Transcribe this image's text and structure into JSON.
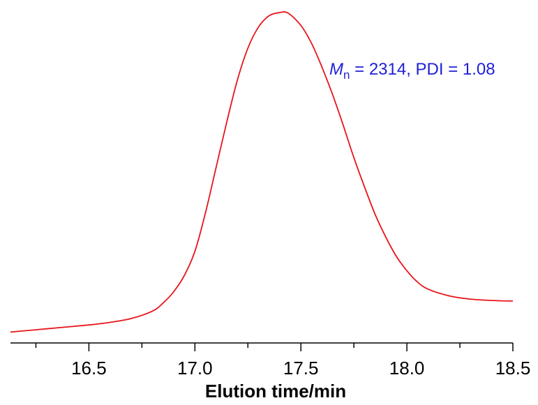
{
  "chart_data": {
    "type": "line",
    "xlabel": "Elution time/min",
    "ylabel": "",
    "xlim": [
      16.13,
      18.5
    ],
    "ylim": [
      0,
      1
    ],
    "x_ticks": [
      "16.5",
      "17.0",
      "17.5",
      "18.0",
      "18.5"
    ],
    "y_axis_visible": false,
    "grid": false,
    "annotation": {
      "symbol": "M",
      "subscript": "n",
      "text": " = 2314, PDI = 1.08",
      "color": "#1f1fd6"
    },
    "series": [
      {
        "color": "#e8141a",
        "x": [
          16.13,
          16.3,
          16.5,
          16.6,
          16.7,
          16.8,
          16.85,
          16.9,
          16.95,
          17.0,
          17.05,
          17.1,
          17.15,
          17.2,
          17.25,
          17.3,
          17.35,
          17.4,
          17.44,
          17.5,
          17.55,
          17.6,
          17.65,
          17.7,
          17.75,
          17.8,
          17.85,
          17.9,
          17.95,
          18.0,
          18.05,
          18.1,
          18.2,
          18.3,
          18.4,
          18.5
        ],
        "y": [
          0.01,
          0.02,
          0.032,
          0.04,
          0.052,
          0.075,
          0.1,
          0.135,
          0.185,
          0.26,
          0.38,
          0.52,
          0.66,
          0.79,
          0.89,
          0.955,
          0.99,
          1.0,
          0.998,
          0.96,
          0.905,
          0.83,
          0.745,
          0.65,
          0.55,
          0.46,
          0.375,
          0.305,
          0.245,
          0.2,
          0.165,
          0.143,
          0.122,
          0.112,
          0.108,
          0.106
        ]
      }
    ]
  }
}
